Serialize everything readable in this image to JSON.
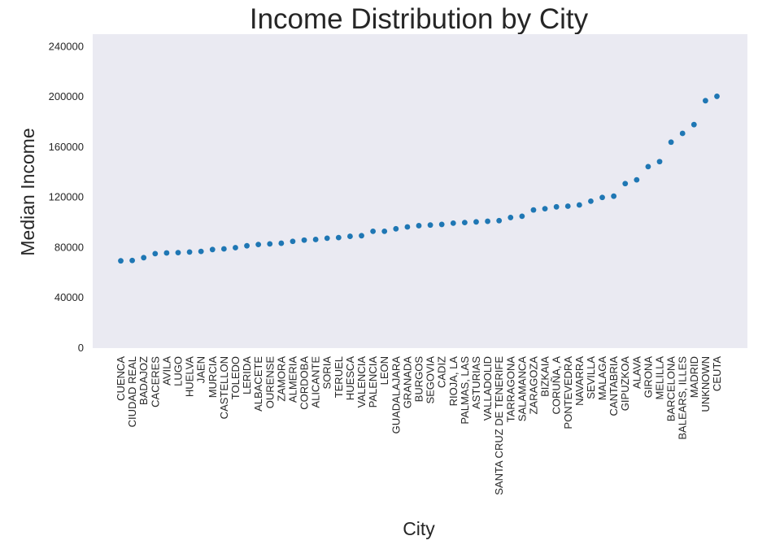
{
  "chart_data": {
    "type": "scatter",
    "title": "Income Distribution by City",
    "xlabel": "City",
    "ylabel": "Median Income",
    "ylim": [
      0,
      250000
    ],
    "yticks": [
      0,
      40000,
      80000,
      120000,
      160000,
      200000,
      240000
    ],
    "ytick_labels": [
      "0",
      "40000",
      "80000",
      "120000",
      "160000",
      "200000",
      "240000"
    ],
    "grid": false,
    "background_color": "#eaeaf2",
    "marker_color": "#1f77b4",
    "categories": [
      "CUENCA",
      "CIUDAD REAL",
      "BADAJOZ",
      "CACERES",
      "AVILA",
      "LUGO",
      "HUELVA",
      "JAEN",
      "MURCIA",
      "CASTELLON",
      "TOLEDO",
      "LERIDA",
      "ALBACETE",
      "OURENSE",
      "ZAMORA",
      "ALMERIA",
      "CORDOBA",
      "ALICANTE",
      "SORIA",
      "TERUEL",
      "HUESCA",
      "VALENCIA",
      "PALENCIA",
      "LEON",
      "GUADALAJARA",
      "GRANADA",
      "BURGOS",
      "SEGOVIA",
      "CADIZ",
      "RIOJA, LA",
      "PALMAS, LAS",
      "ASTURIAS",
      "VALLADOLID",
      "SANTA CRUZ DE TENERIFE",
      "TARRAGONA",
      "SALAMANCA",
      "ZARAGOZA",
      "BIZKAIA",
      "CORUÑA, A",
      "PONTEVEDRA",
      "NAVARRA",
      "SEVILLA",
      "MALAGA",
      "CANTABRIA",
      "GIPUZKOA",
      "ALAVA",
      "GIRONA",
      "MELILLA",
      "BARCELONA",
      "BALEARS, ILLES",
      "MADRID",
      "UNKNOWN",
      "CEUTA"
    ],
    "values": [
      69500,
      69800,
      72000,
      75200,
      75800,
      76000,
      76500,
      77000,
      78500,
      79000,
      80000,
      81500,
      82500,
      83000,
      83500,
      85000,
      86000,
      86500,
      87500,
      88000,
      89000,
      89500,
      93000,
      93000,
      95000,
      96500,
      97500,
      98000,
      98500,
      99500,
      100000,
      100500,
      101000,
      101500,
      104000,
      105000,
      110000,
      111000,
      112500,
      113000,
      114000,
      117000,
      120000,
      121000,
      131000,
      134000,
      144500,
      148500,
      164000,
      171000,
      178000,
      197000,
      200500
    ]
  }
}
